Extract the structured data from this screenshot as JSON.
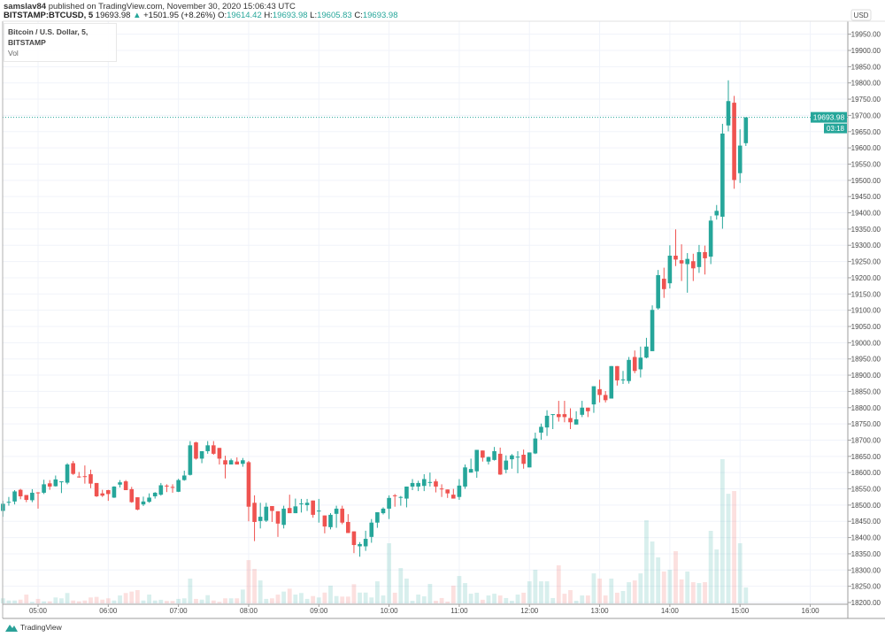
{
  "header": {
    "author": "samslav84",
    "published_text": "published on TradingView.com, November 30, 2020 15:06:43 UTC",
    "symbol": "BITSTAMP:BTCUSD, 5",
    "last_price": "19693.98",
    "change_arrow": "▲",
    "change": "+1501.95 (+8.26%)",
    "o_label": "O:",
    "o_value": "19614.42",
    "h_label": "H:",
    "h_value": "19693.98",
    "l_label": "L:",
    "l_value": "19605.83",
    "c_label": "C:",
    "c_value": "19693.98"
  },
  "legend": {
    "title": "Bitcoin / U.S. Dollar, 5, BITSTAMP",
    "volume_label": "Vol"
  },
  "price_axis": {
    "currency": "USD",
    "last_price_label": "19693.98",
    "countdown": "03:18"
  },
  "footer": {
    "brand": "TradingView"
  },
  "colors": {
    "up": "#26a69a",
    "down": "#ef5350",
    "grid": "#f0f3fa",
    "axis": "#9e9e9e"
  },
  "chart_data": {
    "type": "candlestick",
    "interval": "5",
    "x_ticks": [
      "05:00",
      "06:00",
      "07:00",
      "08:00",
      "09:00",
      "10:00",
      "11:00",
      "12:00",
      "13:00",
      "14:00",
      "15:00",
      "16:00"
    ],
    "y_ticks": [
      18200,
      18250,
      18300,
      18350,
      18400,
      18450,
      18500,
      18550,
      18600,
      18650,
      18700,
      18750,
      18800,
      18850,
      18900,
      18950,
      19000,
      19050,
      19100,
      19150,
      19200,
      19250,
      19300,
      19350,
      19400,
      19450,
      19500,
      19550,
      19600,
      19650,
      19700,
      19750,
      19800,
      19850,
      19900,
      19950
    ],
    "ylim": [
      18200,
      19950
    ],
    "xlim": [
      "04:30",
      "16:30"
    ],
    "grid": true,
    "last_price_line": 19693.98,
    "time": [
      "04:30",
      "04:35",
      "04:40",
      "04:45",
      "04:50",
      "04:55",
      "05:00",
      "05:05",
      "05:10",
      "05:15",
      "05:20",
      "05:25",
      "05:30",
      "05:35",
      "05:40",
      "05:45",
      "05:50",
      "05:55",
      "06:00",
      "06:05",
      "06:10",
      "06:15",
      "06:20",
      "06:25",
      "06:30",
      "06:35",
      "06:40",
      "06:45",
      "06:50",
      "06:55",
      "07:00",
      "07:05",
      "07:10",
      "07:15",
      "07:20",
      "07:25",
      "07:30",
      "07:35",
      "07:40",
      "07:45",
      "07:50",
      "07:55",
      "08:00",
      "08:05",
      "08:10",
      "08:15",
      "08:20",
      "08:25",
      "08:30",
      "08:35",
      "08:40",
      "08:45",
      "08:50",
      "08:55",
      "09:00",
      "09:05",
      "09:10",
      "09:15",
      "09:20",
      "09:25",
      "09:30",
      "09:35",
      "09:40",
      "09:45",
      "09:50",
      "09:55",
      "10:00",
      "10:05",
      "10:10",
      "10:15",
      "10:20",
      "10:25",
      "10:30",
      "10:35",
      "10:40",
      "10:45",
      "10:50",
      "10:55",
      "11:00",
      "11:05",
      "11:10",
      "11:15",
      "11:20",
      "11:25",
      "11:30",
      "11:35",
      "11:40",
      "11:45",
      "11:50",
      "11:55",
      "12:00",
      "12:05",
      "12:10",
      "12:15",
      "12:20",
      "12:25",
      "12:30",
      "12:35",
      "12:40",
      "12:45",
      "12:50",
      "12:55",
      "13:00",
      "13:05",
      "13:10",
      "13:15",
      "13:20",
      "13:25",
      "13:30",
      "13:35",
      "13:40",
      "13:45",
      "13:50",
      "13:55",
      "14:00",
      "14:05",
      "14:10",
      "14:15",
      "14:20",
      "14:25",
      "14:30",
      "14:35",
      "14:40",
      "14:45",
      "14:50",
      "14:55",
      "15:00",
      "15:05"
    ],
    "ohlc": [
      [
        18482,
        18513,
        18464,
        18504
      ],
      [
        18508,
        18525,
        18498,
        18510
      ],
      [
        18511,
        18546,
        18502,
        18542
      ],
      [
        18547,
        18550,
        18518,
        18527
      ],
      [
        18531,
        18531,
        18509,
        18516
      ],
      [
        18515,
        18549,
        18509,
        18538
      ],
      [
        18539,
        18540,
        18489,
        18538
      ],
      [
        18538,
        18578,
        18534,
        18564
      ],
      [
        18567,
        18577,
        18547,
        18557
      ],
      [
        18558,
        18591,
        18557,
        18579
      ],
      [
        18572,
        18573,
        18537,
        18573
      ],
      [
        18569,
        18629,
        18564,
        18625
      ],
      [
        18629,
        18636,
        18593,
        18596
      ],
      [
        18588,
        18602,
        18584,
        18587
      ],
      [
        18589,
        18622,
        18566,
        18588
      ],
      [
        18595,
        18609,
        18552,
        18566
      ],
      [
        18568,
        18568,
        18525,
        18527
      ],
      [
        18536,
        18547,
        18525,
        18529
      ],
      [
        18546,
        18547,
        18513,
        18534
      ],
      [
        18523,
        18558,
        18522,
        18557
      ],
      [
        18563,
        18577,
        18554,
        18570
      ],
      [
        18573,
        18577,
        18546,
        18546
      ],
      [
        18549,
        18556,
        18507,
        18509
      ],
      [
        18524,
        18524,
        18484,
        18486
      ],
      [
        18502,
        18526,
        18497,
        18511
      ],
      [
        18510,
        18536,
        18507,
        18523
      ],
      [
        18527,
        18540,
        18520,
        18538
      ],
      [
        18532,
        18568,
        18529,
        18561
      ],
      [
        18560,
        18564,
        18540,
        18559
      ],
      [
        18556,
        18564,
        18538,
        18555
      ],
      [
        18541,
        18581,
        18540,
        18577
      ],
      [
        18577,
        18606,
        18575,
        18591
      ],
      [
        18593,
        18697,
        18591,
        18684
      ],
      [
        18693,
        18695,
        18640,
        18643
      ],
      [
        18643,
        18666,
        18629,
        18666
      ],
      [
        18666,
        18697,
        18658,
        18684
      ],
      [
        18684,
        18697,
        18655,
        18658
      ],
      [
        18676,
        18676,
        18625,
        18643
      ],
      [
        18638,
        18652,
        18582,
        18625
      ],
      [
        18625,
        18643,
        18625,
        18638
      ],
      [
        18634,
        18647,
        18625,
        18625
      ],
      [
        18627,
        18645,
        18618,
        18638
      ],
      [
        18632,
        18636,
        18450,
        18495
      ],
      [
        18507,
        18530,
        18389,
        18448
      ],
      [
        18451,
        18507,
        18428,
        18464
      ],
      [
        18452,
        18507,
        18448,
        18495
      ],
      [
        18497,
        18497,
        18448,
        18482
      ],
      [
        18481,
        18481,
        18402,
        18443
      ],
      [
        18439,
        18498,
        18428,
        18489
      ],
      [
        18491,
        18532,
        18475,
        18475
      ],
      [
        18475,
        18520,
        18475,
        18496
      ],
      [
        18504,
        18519,
        18477,
        18505
      ],
      [
        18500,
        18519,
        18482,
        18507
      ],
      [
        18514,
        18514,
        18461,
        18470
      ],
      [
        18482,
        18519,
        18446,
        18483
      ],
      [
        18468,
        18468,
        18413,
        18434
      ],
      [
        18432,
        18475,
        18425,
        18470
      ],
      [
        18473,
        18498,
        18430,
        18489
      ],
      [
        18489,
        18498,
        18441,
        18446
      ],
      [
        18448,
        18472,
        18414,
        18414
      ],
      [
        18419,
        18419,
        18352,
        18377
      ],
      [
        18373,
        18386,
        18341,
        18380
      ],
      [
        18373,
        18421,
        18359,
        18396
      ],
      [
        18402,
        18457,
        18384,
        18446
      ],
      [
        18446,
        18478,
        18430,
        18478
      ],
      [
        18475,
        18493,
        18471,
        18489
      ],
      [
        18489,
        18530,
        18457,
        18522
      ],
      [
        18530,
        18534,
        18495,
        18529
      ],
      [
        18524,
        18528,
        18498,
        18525
      ],
      [
        18520,
        18557,
        18493,
        18557
      ],
      [
        18557,
        18580,
        18546,
        18568
      ],
      [
        18557,
        18575,
        18543,
        18568
      ],
      [
        18559,
        18595,
        18543,
        18580
      ],
      [
        18570,
        18600,
        18557,
        18571
      ],
      [
        18573,
        18580,
        18539,
        18557
      ],
      [
        18551,
        18564,
        18525,
        18550
      ],
      [
        18548,
        18548,
        18522,
        18536
      ],
      [
        18532,
        18550,
        18520,
        18520
      ],
      [
        18525,
        18580,
        18516,
        18560
      ],
      [
        18557,
        18625,
        18550,
        18616
      ],
      [
        18600,
        18643,
        18600,
        18611
      ],
      [
        18604,
        18670,
        18584,
        18670
      ],
      [
        18668,
        18668,
        18634,
        18646
      ],
      [
        18634,
        18649,
        18625,
        18648
      ],
      [
        18639,
        18679,
        18637,
        18666
      ],
      [
        18658,
        18677,
        18593,
        18594
      ],
      [
        18609,
        18653,
        18598,
        18637
      ],
      [
        18641,
        18657,
        18612,
        18653
      ],
      [
        18648,
        18666,
        18598,
        18649
      ],
      [
        18655,
        18671,
        18612,
        18627
      ],
      [
        18616,
        18662,
        18616,
        18662
      ],
      [
        18659,
        18723,
        18657,
        18705
      ],
      [
        18723,
        18751,
        18701,
        18741
      ],
      [
        18739,
        18792,
        18713,
        18775
      ],
      [
        18778,
        18780,
        18734,
        18780
      ],
      [
        18780,
        18821,
        18757,
        18771
      ],
      [
        18780,
        18821,
        18755,
        18771
      ],
      [
        18768,
        18798,
        18734,
        18755
      ],
      [
        18748,
        18789,
        18748,
        18764
      ],
      [
        18778,
        18821,
        18771,
        18800
      ],
      [
        18800,
        18800,
        18771,
        18789
      ],
      [
        18810,
        18866,
        18784,
        18866
      ],
      [
        18857,
        18886,
        18816,
        18839
      ],
      [
        18839,
        18851,
        18816,
        18823
      ],
      [
        18828,
        18928,
        18828,
        18928
      ],
      [
        18928,
        18928,
        18868,
        18884
      ],
      [
        18885,
        18913,
        18873,
        18887
      ],
      [
        18882,
        18956,
        18874,
        18947
      ],
      [
        18956,
        18976,
        18906,
        18913
      ],
      [
        18918,
        18988,
        18893,
        18954
      ],
      [
        18954,
        19015,
        18952,
        18988
      ],
      [
        18974,
        19115,
        18974,
        19101
      ],
      [
        19106,
        19224,
        19102,
        19208
      ],
      [
        19197,
        19231,
        19138,
        19165
      ],
      [
        19183,
        19300,
        19167,
        19268
      ],
      [
        19268,
        19349,
        19236,
        19256
      ],
      [
        19254,
        19303,
        19190,
        19244
      ],
      [
        19242,
        19276,
        19154,
        19258
      ],
      [
        19251,
        19274,
        19190,
        19229
      ],
      [
        19233,
        19301,
        19215,
        19279
      ],
      [
        19279,
        19299,
        19210,
        19260
      ],
      [
        19265,
        19390,
        19242,
        19376
      ],
      [
        19392,
        19424,
        19379,
        19406
      ],
      [
        19388,
        19674,
        19351,
        19644
      ],
      [
        19669,
        19808,
        19651,
        19744
      ],
      [
        19739,
        19760,
        19474,
        19501
      ],
      [
        19522,
        19657,
        19492,
        19607
      ],
      [
        19614.42,
        19693.98,
        19605.83,
        19693.98
      ]
    ],
    "volume_relative": [
      3.5,
      2,
      2,
      2.6,
      6.1,
      1,
      3.1,
      1.4,
      1.4,
      4.1,
      3.5,
      7.2,
      2,
      1.4,
      2,
      4.1,
      4.5,
      2.6,
      3.5,
      2,
      5.5,
      7.2,
      8.2,
      9.2,
      2,
      6.1,
      2,
      2.5,
      1.7,
      1.7,
      3.1,
      3.5,
      17.2,
      3.1,
      2.6,
      5.7,
      2,
      1,
      3.5,
      3.5,
      3.5,
      9.6,
      30,
      23.9,
      15.9,
      3.1,
      3.5,
      6.1,
      8.2,
      10.2,
      6.1,
      7.2,
      3.1,
      5.1,
      4.1,
      7.5,
      12.3,
      5.1,
      4.7,
      4.7,
      13.3,
      7.5,
      7.5,
      4.1,
      15.3,
      5.5,
      41.7,
      7.4,
      24.5,
      17.2,
      1.8,
      6.1,
      4.9,
      13.5,
      1.8,
      3.7,
      1.2,
      12.3,
      19,
      14.1,
      6.7,
      7.4,
      2.5,
      5.5,
      6.7,
      5.5,
      3.7,
      1.8,
      6.1,
      7.4,
      15.3,
      23.3,
      15.3,
      15.3,
      3.7,
      26.4,
      6.7,
      9.2,
      1.8,
      5.5,
      5.5,
      20.8,
      17.2,
      5.5,
      17.2,
      7.4,
      8.6,
      14.7,
      15.9,
      20.8,
      57.6,
      42.9,
      31.9,
      22.1,
      23.3,
      36.2,
      16.6,
      22.1,
      14.7,
      14.1,
      14.7,
      50.3,
      37.4,
      100,
      76,
      77.9,
      41.7,
      11
    ]
  }
}
